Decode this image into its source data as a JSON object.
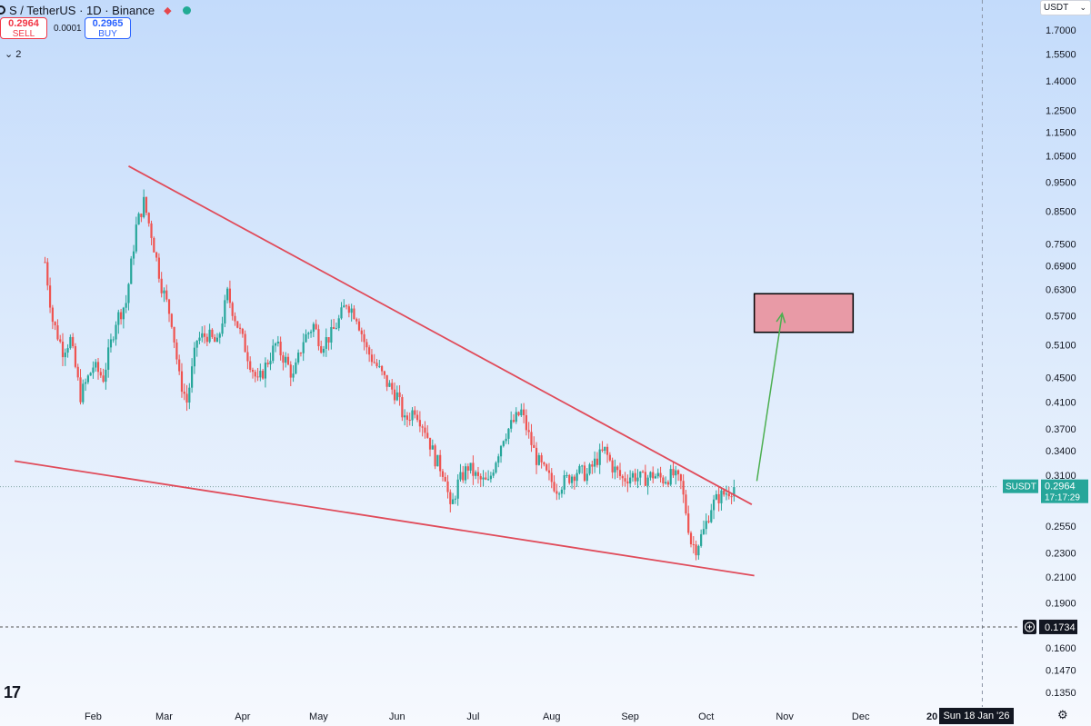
{
  "header": {
    "symbol_title": "S / TetherUS · 1D · Binance",
    "sell_price": "0.2964",
    "sell_label": "SELL",
    "spread": "0.0001",
    "buy_price": "0.2965",
    "buy_label": "BUY",
    "indicator_count": "2"
  },
  "currency_selector": "USDT",
  "last_price_tag": {
    "symbol": "SUSDT",
    "price": "0.2964",
    "countdown": "17:17:29"
  },
  "crosshair_price": "0.1734",
  "crosshair_date": "Sun 18 Jan '26",
  "partial_year_label": "20",
  "colors": {
    "up": "#26a69a",
    "down": "#ef5350",
    "trendline": "#e04b5a",
    "target_zone": "#e89aa6",
    "arrow": "#4caf50"
  },
  "chart_data": {
    "type": "candlestick",
    "title": "S / TetherUS · 1D · Binance",
    "y_scale": "log",
    "ylim": [
      0.133,
      2.0
    ],
    "y_ticks": [
      "1.7000",
      "1.5500",
      "1.4000",
      "1.2500",
      "1.1500",
      "1.0500",
      "0.9500",
      "0.8500",
      "0.7500",
      "0.6900",
      "0.6300",
      "0.5700",
      "0.5100",
      "0.4500",
      "0.4100",
      "0.3700",
      "0.3400",
      "0.3100",
      "0.2550",
      "0.2300",
      "0.2100",
      "0.1900",
      "0.1600",
      "0.1470",
      "0.1350"
    ],
    "x_range": [
      "2025-01-06",
      "2026-01-20"
    ],
    "x_ticks": [
      {
        "label": "Feb",
        "date": "2025-02-01"
      },
      {
        "label": "Mar",
        "date": "2025-03-01"
      },
      {
        "label": "Apr",
        "date": "2025-04-01"
      },
      {
        "label": "May",
        "date": "2025-05-01"
      },
      {
        "label": "Jun",
        "date": "2025-06-01"
      },
      {
        "label": "Jul",
        "date": "2025-07-01"
      },
      {
        "label": "Aug",
        "date": "2025-08-01"
      },
      {
        "label": "Sep",
        "date": "2025-09-01"
      },
      {
        "label": "Oct",
        "date": "2025-10-01"
      },
      {
        "label": "Nov",
        "date": "2025-11-01"
      },
      {
        "label": "Dec",
        "date": "2025-12-01"
      }
    ],
    "price_path": [
      {
        "date": "2025-01-13",
        "price": 0.7
      },
      {
        "date": "2025-01-16",
        "price": 0.56
      },
      {
        "date": "2025-01-20",
        "price": 0.5
      },
      {
        "date": "2025-01-23",
        "price": 0.52
      },
      {
        "date": "2025-01-27",
        "price": 0.42
      },
      {
        "date": "2025-02-01",
        "price": 0.47
      },
      {
        "date": "2025-02-05",
        "price": 0.45
      },
      {
        "date": "2025-02-10",
        "price": 0.56
      },
      {
        "date": "2025-02-14",
        "price": 0.6
      },
      {
        "date": "2025-02-18",
        "price": 0.8
      },
      {
        "date": "2025-02-21",
        "price": 0.88
      },
      {
        "date": "2025-02-24",
        "price": 0.78
      },
      {
        "date": "2025-02-28",
        "price": 0.64
      },
      {
        "date": "2025-03-04",
        "price": 0.56
      },
      {
        "date": "2025-03-07",
        "price": 0.45
      },
      {
        "date": "2025-03-10",
        "price": 0.41
      },
      {
        "date": "2025-03-14",
        "price": 0.52
      },
      {
        "date": "2025-03-18",
        "price": 0.53
      },
      {
        "date": "2025-03-22",
        "price": 0.51
      },
      {
        "date": "2025-03-26",
        "price": 0.62
      },
      {
        "date": "2025-03-30",
        "price": 0.55
      },
      {
        "date": "2025-04-03",
        "price": 0.49
      },
      {
        "date": "2025-04-07",
        "price": 0.44
      },
      {
        "date": "2025-04-10",
        "price": 0.47
      },
      {
        "date": "2025-04-14",
        "price": 0.51
      },
      {
        "date": "2025-04-18",
        "price": 0.48
      },
      {
        "date": "2025-04-21",
        "price": 0.45
      },
      {
        "date": "2025-04-25",
        "price": 0.52
      },
      {
        "date": "2025-04-29",
        "price": 0.55
      },
      {
        "date": "2025-05-02",
        "price": 0.51
      },
      {
        "date": "2025-05-06",
        "price": 0.53
      },
      {
        "date": "2025-05-09",
        "price": 0.56
      },
      {
        "date": "2025-05-12",
        "price": 0.6
      },
      {
        "date": "2025-05-16",
        "price": 0.57
      },
      {
        "date": "2025-05-20",
        "price": 0.5
      },
      {
        "date": "2025-05-24",
        "price": 0.47
      },
      {
        "date": "2025-05-28",
        "price": 0.44
      },
      {
        "date": "2025-06-01",
        "price": 0.42
      },
      {
        "date": "2025-06-04",
        "price": 0.38
      },
      {
        "date": "2025-06-08",
        "price": 0.4
      },
      {
        "date": "2025-06-12",
        "price": 0.37
      },
      {
        "date": "2025-06-16",
        "price": 0.33
      },
      {
        "date": "2025-06-20",
        "price": 0.31
      },
      {
        "date": "2025-06-22",
        "price": 0.27
      },
      {
        "date": "2025-06-25",
        "price": 0.3
      },
      {
        "date": "2025-06-29",
        "price": 0.32
      },
      {
        "date": "2025-07-03",
        "price": 0.305
      },
      {
        "date": "2025-07-07",
        "price": 0.3
      },
      {
        "date": "2025-07-10",
        "price": 0.33
      },
      {
        "date": "2025-07-13",
        "price": 0.36
      },
      {
        "date": "2025-07-17",
        "price": 0.38
      },
      {
        "date": "2025-07-20",
        "price": 0.395
      },
      {
        "date": "2025-07-23",
        "price": 0.36
      },
      {
        "date": "2025-07-26",
        "price": 0.33
      },
      {
        "date": "2025-07-30",
        "price": 0.31
      },
      {
        "date": "2025-08-03",
        "price": 0.295
      },
      {
        "date": "2025-08-07",
        "price": 0.305
      },
      {
        "date": "2025-08-11",
        "price": 0.315
      },
      {
        "date": "2025-08-15",
        "price": 0.31
      },
      {
        "date": "2025-08-19",
        "price": 0.33
      },
      {
        "date": "2025-08-22",
        "price": 0.34
      },
      {
        "date": "2025-08-25",
        "price": 0.32
      },
      {
        "date": "2025-08-29",
        "price": 0.305
      },
      {
        "date": "2025-09-02",
        "price": 0.31
      },
      {
        "date": "2025-09-06",
        "price": 0.305
      },
      {
        "date": "2025-09-10",
        "price": 0.31
      },
      {
        "date": "2025-09-14",
        "price": 0.305
      },
      {
        "date": "2025-09-18",
        "price": 0.31
      },
      {
        "date": "2025-09-21",
        "price": 0.3
      },
      {
        "date": "2025-09-23",
        "price": 0.27
      },
      {
        "date": "2025-09-25",
        "price": 0.24
      },
      {
        "date": "2025-09-27",
        "price": 0.235
      },
      {
        "date": "2025-09-30",
        "price": 0.25
      },
      {
        "date": "2025-10-03",
        "price": 0.275
      },
      {
        "date": "2025-10-06",
        "price": 0.285
      },
      {
        "date": "2025-10-09",
        "price": 0.29
      },
      {
        "date": "2025-10-12",
        "price": 0.2964
      }
    ],
    "annotations": {
      "upper_trendline": [
        {
          "date": "2025-02-15",
          "price": 1.01
        },
        {
          "date": "2025-10-19",
          "price": 0.277
        }
      ],
      "lower_trendline": [
        {
          "date": "2025-01-01",
          "price": 0.327
        },
        {
          "date": "2025-10-20",
          "price": 0.211
        }
      ],
      "target_zone": {
        "date_from": "2025-10-20",
        "date_to": "2025-11-28",
        "price_low": 0.535,
        "price_high": 0.62
      },
      "projection_arrow": [
        {
          "date": "2025-10-21",
          "price": 0.303
        },
        {
          "date": "2025-10-31",
          "price": 0.575
        }
      ],
      "last_price_line": 0.2964,
      "crosshair_line": 0.1734
    }
  }
}
